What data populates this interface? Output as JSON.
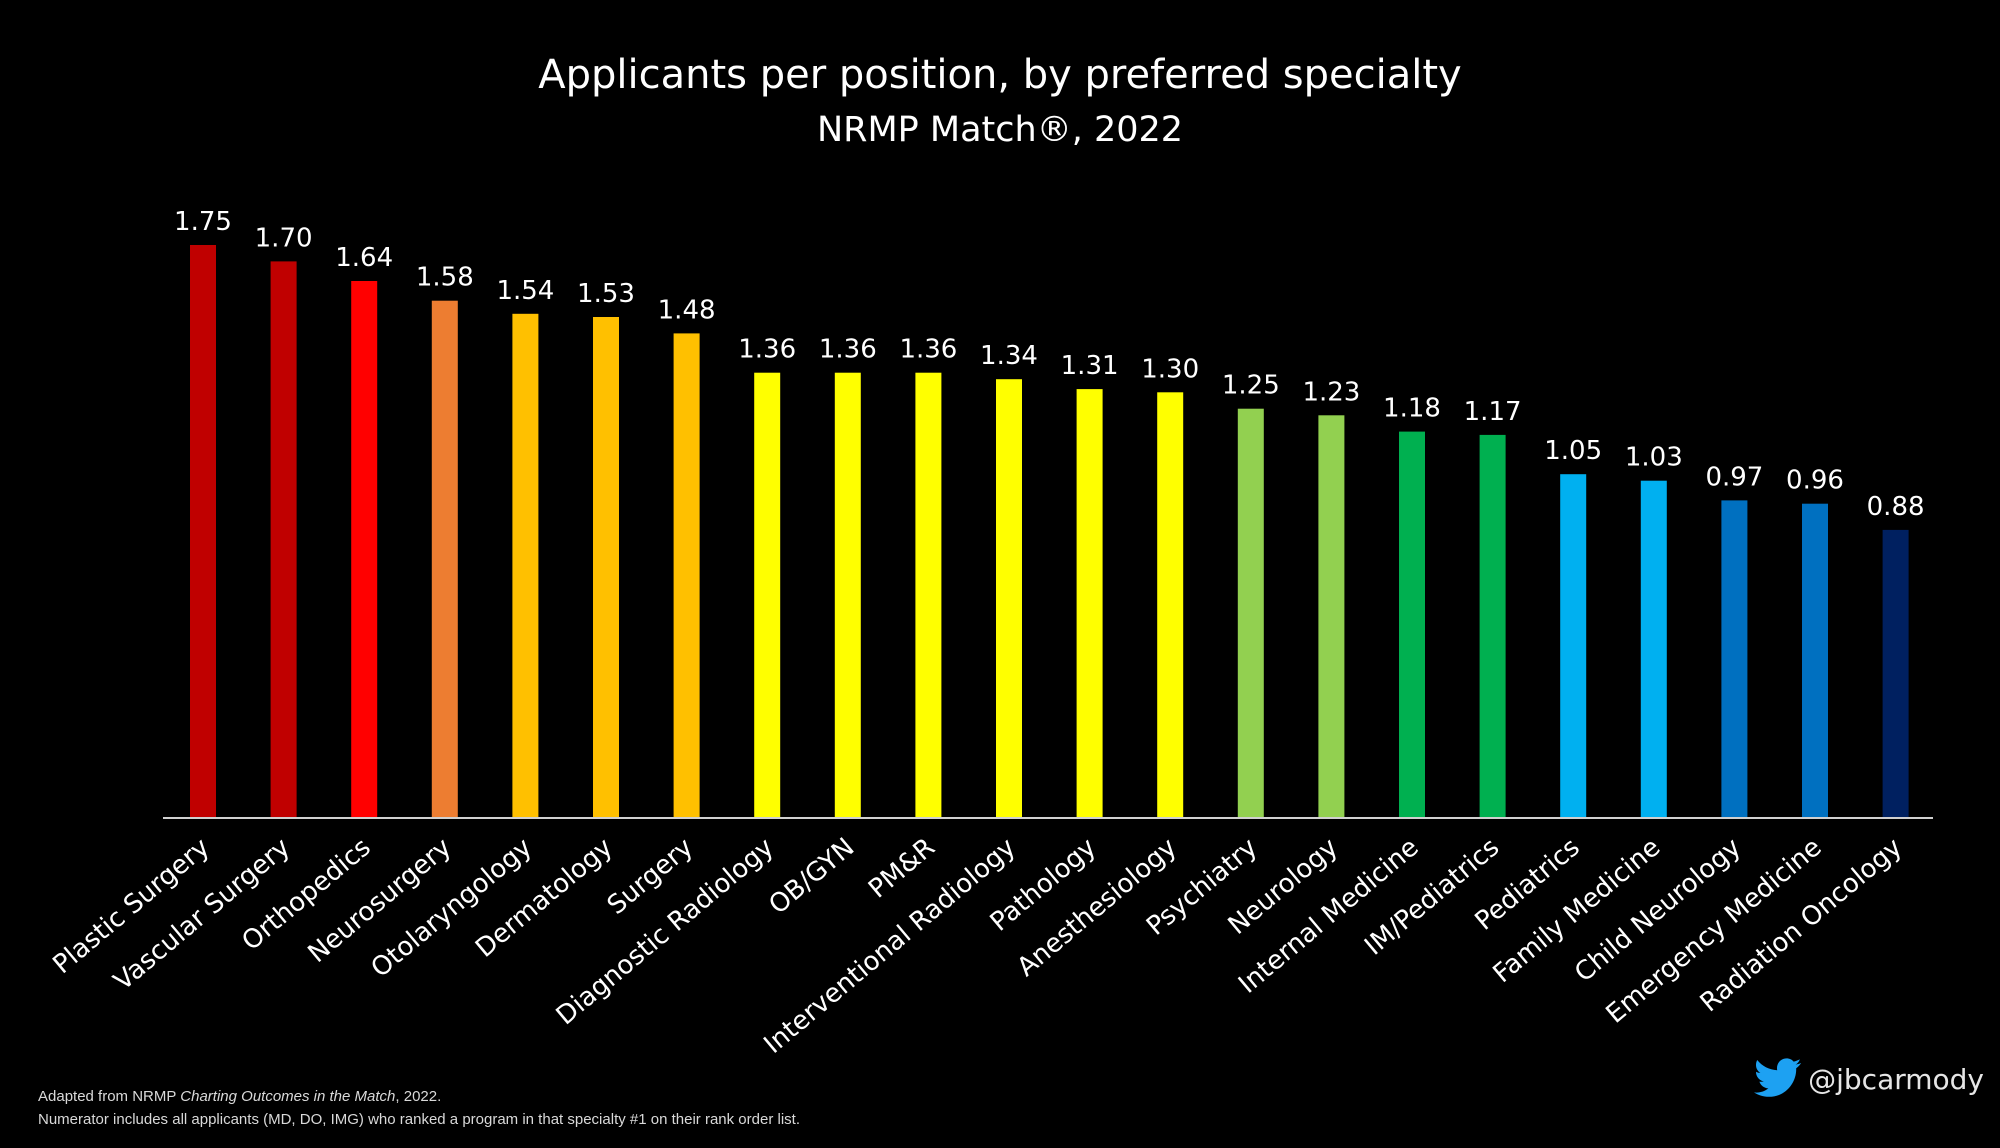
{
  "chart_data": {
    "type": "bar",
    "title": "Applicants per position, by preferred specialty",
    "subtitle": "NRMP Match®, 2022",
    "categories": [
      "Plastic Surgery",
      "Vascular Surgery",
      "Orthopedics",
      "Neurosurgery",
      "Otolaryngology",
      "Dermatology",
      "Surgery",
      "Diagnostic Radiology",
      "OB/GYN",
      "PM&R",
      "Interventional Radiology",
      "Pathology",
      "Anesthesiology",
      "Psychiatry",
      "Neurology",
      "Internal Medicine",
      "IM/Pediatrics",
      "Pediatrics",
      "Family Medicine",
      "Child Neurology",
      "Emergency Medicine",
      "Radiation Oncology"
    ],
    "values": [
      1.75,
      1.7,
      1.64,
      1.58,
      1.54,
      1.53,
      1.48,
      1.36,
      1.36,
      1.36,
      1.34,
      1.31,
      1.3,
      1.25,
      1.23,
      1.18,
      1.17,
      1.05,
      1.03,
      0.97,
      0.96,
      0.88
    ],
    "value_labels": [
      "1.75",
      "1.70",
      "1.64",
      "1.58",
      "1.54",
      "1.53",
      "1.48",
      "1.36",
      "1.36",
      "1.36",
      "1.34",
      "1.31",
      "1.30",
      "1.25",
      "1.23",
      "1.18",
      "1.17",
      "1.05",
      "1.03",
      "0.97",
      "0.96",
      "0.88"
    ],
    "colors": [
      "#c00000",
      "#c00000",
      "#ff0000",
      "#ed7d31",
      "#ffc000",
      "#ffc000",
      "#ffc000",
      "#ffff00",
      "#ffff00",
      "#ffff00",
      "#ffff00",
      "#ffff00",
      "#ffff00",
      "#92d050",
      "#92d050",
      "#00b050",
      "#00b050",
      "#00b0f0",
      "#00b0f0",
      "#0070c0",
      "#0070c0",
      "#002060"
    ],
    "ylim": [
      0,
      1.75
    ],
    "grid": false,
    "legend": "none",
    "xlabel": "",
    "ylabel": ""
  },
  "footnote": {
    "line1_prefix": "Adapted from NRMP ",
    "line1_italic": "Charting Outcomes in the Match",
    "line1_suffix": ", 2022.",
    "line2": "Numerator includes all applicants (MD, DO, IMG) who ranked a program in that specialty #1 on their rank order list."
  },
  "handle": {
    "icon": "twitter-bird-icon",
    "icon_color": "#1da1f2",
    "text": "@jbcarmody"
  }
}
